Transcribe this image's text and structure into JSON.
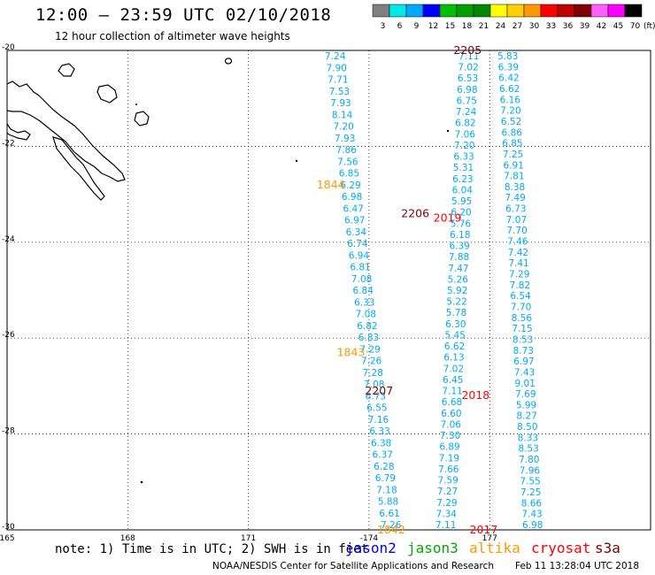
{
  "header": {
    "title": "12:00 – 23:59 UTC 02/10/2018",
    "subtitle": "12 hour collection of altimeter wave heights"
  },
  "legend": {
    "unit": "(ft)",
    "bins": [
      {
        "label": "3",
        "color": "#808080"
      },
      {
        "label": "6",
        "color": "#00e8e8"
      },
      {
        "label": "9",
        "color": "#00a8ff"
      },
      {
        "label": "12",
        "color": "#0000ff"
      },
      {
        "label": "15",
        "color": "#00c000"
      },
      {
        "label": "18",
        "color": "#00a000"
      },
      {
        "label": "21",
        "color": "#008800"
      },
      {
        "label": "24",
        "color": "#ffff00"
      },
      {
        "label": "27",
        "color": "#ffd000"
      },
      {
        "label": "30",
        "color": "#ff9900"
      },
      {
        "label": "33",
        "color": "#ff0000"
      },
      {
        "label": "36",
        "color": "#c00000"
      },
      {
        "label": "39",
        "color": "#800000"
      },
      {
        "label": "42",
        "color": "#ff60ff"
      },
      {
        "label": "45",
        "color": "#ff00ff"
      },
      {
        "label": "70",
        "color": "#000000"
      }
    ]
  },
  "map": {
    "lon_labels": [
      "165",
      "168",
      "171",
      "-174",
      "177"
    ],
    "lat_labels": [
      "-20",
      "-22",
      "-24",
      "-26",
      "-28",
      "-30"
    ],
    "time_markers": [
      {
        "text": "2205",
        "lon": 176.1,
        "lat": -20.0,
        "color": "#800000"
      },
      {
        "text": "1844",
        "lon": 172.7,
        "lat": -22.8,
        "color": "#ff9900"
      },
      {
        "text": "2206",
        "lon": 174.8,
        "lat": -23.4,
        "color": "#800000"
      },
      {
        "text": "2019",
        "lon": 175.6,
        "lat": -23.5,
        "color": "#ff0000"
      },
      {
        "text": "1843",
        "lon": 173.2,
        "lat": -26.3,
        "color": "#ff9900"
      },
      {
        "text": "2207",
        "lon": 173.9,
        "lat": -27.1,
        "color": "#800000"
      },
      {
        "text": "2018",
        "lon": 176.3,
        "lat": -27.2,
        "color": "#ff0000"
      },
      {
        "text": "1842",
        "lon": 174.2,
        "lat": -30.0,
        "color": "#ff9900"
      },
      {
        "text": "2017",
        "lon": 176.5,
        "lat": -30.0,
        "color": "#ff0000"
      }
    ],
    "tracks": [
      {
        "name": "track-a",
        "color": "#00aaee",
        "x_start": 180,
        "x_end": 128.5,
        "values": [
          "7.24",
          "7.90",
          "7.71",
          "7.53",
          "7.93",
          "8.14",
          "7.20",
          "7.93",
          "7.86",
          "7.56",
          "6.85",
          "6.29",
          "6.98",
          "6.47",
          "6.97",
          "6.34",
          "6.74",
          "6.94",
          "6.81",
          "7.08",
          "6.84",
          "6.33",
          "7.08",
          "6.82",
          "6.83",
          "7.29",
          "7.26",
          "7.28",
          "7.08",
          "6.73",
          "6.55",
          "7.16",
          "6.33",
          "6.38",
          "6.37",
          "6.28",
          "6.79",
          "7.18",
          "5.88",
          "6.61",
          "7.26"
        ]
      },
      {
        "name": "track-b",
        "color": "#00aaee",
        "x_start": 180,
        "x_end": 128.5,
        "values": [
          "7.11",
          "7.02",
          "6.53",
          "6.98",
          "6.75",
          "7.24",
          "6.82",
          "7.06",
          "7.20",
          "6.33",
          "5.31",
          "6.23",
          "6.04",
          "5.95",
          "6.20",
          "5.76",
          "6.18",
          "6.39",
          "7.88",
          "7.47",
          "5.26",
          "5.92",
          "5.22",
          "5.78",
          "6.30",
          "5.45",
          "6.62",
          "6.13",
          "7.02",
          "6.45",
          "7.11",
          "6.68",
          "6.60",
          "7.06",
          "7.30",
          "6.89",
          "7.19",
          "7.66",
          "7.59",
          "7.27",
          "7.29",
          "7.34",
          "7.11"
        ]
      },
      {
        "name": "track-c",
        "color": "#00aaee",
        "x_start": 180,
        "x_end": 128.5,
        "values": [
          "5.83",
          "6.39",
          "6.42",
          "6.62",
          "6.16",
          "7.20",
          "6.52",
          "6.86",
          "6.85",
          "7.25",
          "6.91",
          "7.81",
          "8.38",
          "7.49",
          "6.73",
          "7.07",
          "7.70",
          "7.46",
          "7.42",
          "7.41",
          "7.29",
          "7.82",
          "6.54",
          "7.70",
          "8.56",
          "7.15",
          "8.53",
          "8.73",
          "6.97",
          "7.43",
          "9.01",
          "7.69",
          "5.99",
          "8.27",
          "8.50",
          "8.33",
          "8.53",
          "7.80",
          "7.96",
          "7.55",
          "7.25",
          "8.66",
          "7.43",
          "6.98"
        ]
      }
    ]
  },
  "footer": {
    "note": "note: 1) Time is in UTC; 2) SWH is in feet",
    "satellites": [
      {
        "label": "jason2",
        "color": "#0000ff"
      },
      {
        "label": "jason3",
        "color": "#00aa00"
      },
      {
        "label": "altika",
        "color": "#ff9900"
      },
      {
        "label": "cryosat",
        "color": "#ff0000"
      },
      {
        "label": "s3a",
        "color": "#800000"
      }
    ],
    "credit": "NOAA/NESDIS Center for Satellite Applications and Research",
    "timestamp": "Feb 11 13:28:04 UTC 2018"
  }
}
